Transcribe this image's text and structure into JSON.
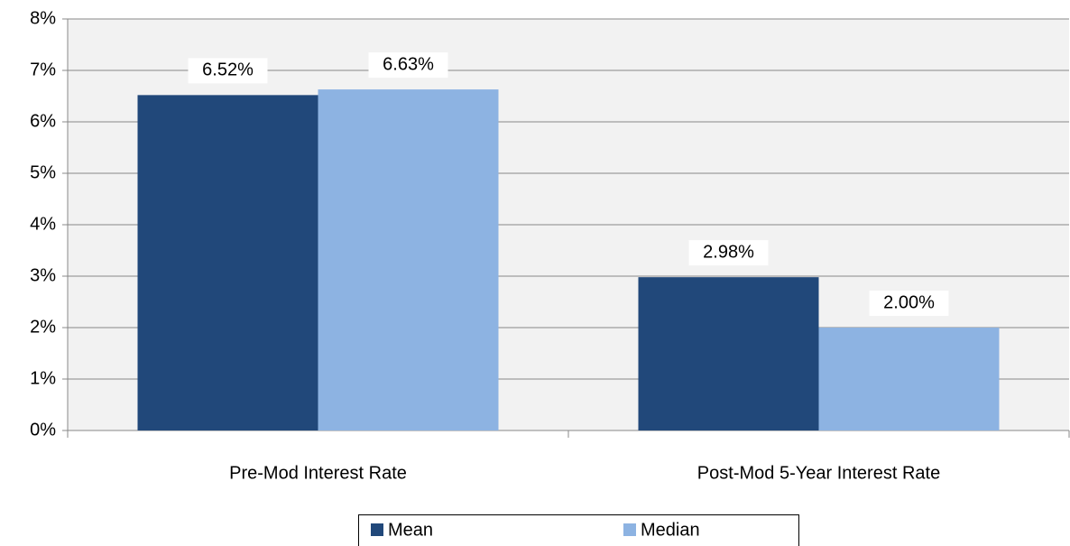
{
  "chart_data": {
    "type": "bar",
    "categories": [
      "Pre-Mod Interest Rate",
      "Post-Mod 5-Year Interest Rate"
    ],
    "series": [
      {
        "name": "Mean",
        "color": "#21487a",
        "values": [
          6.52,
          2.98
        ],
        "value_labels": [
          "6.52%",
          "2.98%"
        ]
      },
      {
        "name": "Median",
        "color": "#8db3e2",
        "values": [
          6.63,
          2.0
        ],
        "value_labels": [
          "6.63%",
          "2.00%"
        ]
      }
    ],
    "ylim": [
      0,
      8
    ],
    "yticks": [
      {
        "value": 0,
        "label": "0%"
      },
      {
        "value": 1,
        "label": "1%"
      },
      {
        "value": 2,
        "label": "2%"
      },
      {
        "value": 3,
        "label": "3%"
      },
      {
        "value": 4,
        "label": "4%"
      },
      {
        "value": 5,
        "label": "5%"
      },
      {
        "value": 6,
        "label": "6%"
      },
      {
        "value": 7,
        "label": "7%"
      },
      {
        "value": 8,
        "label": "8%"
      }
    ],
    "grid": true,
    "legend": "bottom"
  }
}
